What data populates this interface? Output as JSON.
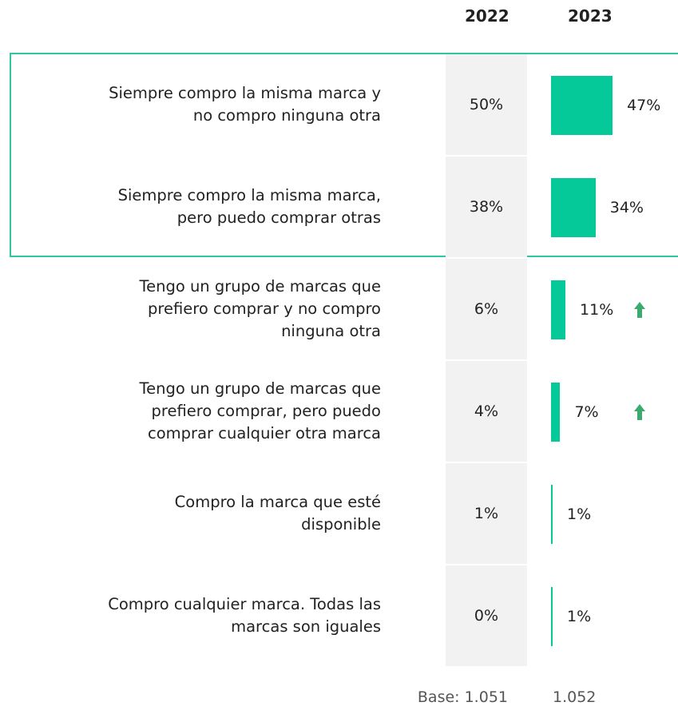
{
  "chart_data": {
    "type": "bar",
    "categories": [
      "Siempre compro la misma marca y\nno compro ninguna otra",
      "Siempre compro la misma marca,\npero puedo comprar otras",
      "Tengo un grupo de marcas que\nprefiero comprar y no compro\nninguna otra",
      "Tengo un grupo de marcas que\nprefiero comprar, pero puedo\ncomprar cualquier otra marca",
      "Compro la marca que esté\ndisponible",
      "Compro cualquier marca. Todas las\nmarcas son iguales"
    ],
    "series": [
      {
        "name": "2022",
        "values": [
          50,
          38,
          6,
          4,
          1,
          0
        ],
        "value_labels": [
          "50%",
          "38%",
          "6%",
          "4%",
          "1%",
          "0%"
        ]
      },
      {
        "name": "2023",
        "color": "#06c999",
        "values": [
          47,
          34,
          11,
          7,
          1,
          1
        ],
        "value_labels": [
          "47%",
          "34%",
          "11%",
          "7%",
          "1%",
          "1%"
        ],
        "increase": [
          false,
          false,
          true,
          true,
          false,
          false
        ]
      }
    ],
    "base": [
      "Base: 1.051",
      "1.052"
    ]
  }
}
